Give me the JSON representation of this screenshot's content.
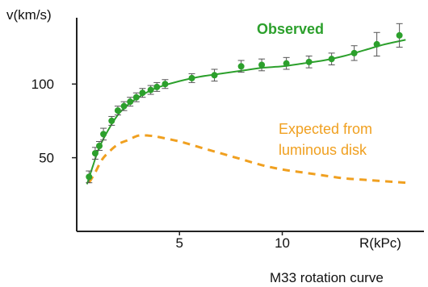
{
  "chart_data": {
    "type": "scatter",
    "title": "",
    "caption": "M33 rotation curve",
    "ylabel": "v(km/s)",
    "xlabel": "R(kPc)",
    "xlim": [
      0,
      16.5
    ],
    "ylim": [
      0,
      145
    ],
    "x_ticks": [
      {
        "value": 5,
        "label": "5"
      },
      {
        "value": 10,
        "label": "10"
      }
    ],
    "y_ticks": [
      {
        "value": 50,
        "label": "50"
      },
      {
        "value": 100,
        "label": "100"
      }
    ],
    "grid": false,
    "colors": {
      "observed": "#2ca02c",
      "expected": "#f0a020",
      "axis": "#222222"
    },
    "series": [
      {
        "name": "Observed",
        "type": "scatter-with-errorbars-and-fit",
        "points": [
          {
            "x": 0.6,
            "y": 37,
            "err": 4
          },
          {
            "x": 0.9,
            "y": 53,
            "err": 4
          },
          {
            "x": 1.1,
            "y": 58,
            "err": 3
          },
          {
            "x": 1.3,
            "y": 66,
            "err": 4
          },
          {
            "x": 1.7,
            "y": 75,
            "err": 3
          },
          {
            "x": 2.0,
            "y": 82,
            "err": 3
          },
          {
            "x": 2.3,
            "y": 85,
            "err": 3
          },
          {
            "x": 2.6,
            "y": 88,
            "err": 3
          },
          {
            "x": 2.9,
            "y": 91,
            "err": 3
          },
          {
            "x": 3.2,
            "y": 94,
            "err": 3
          },
          {
            "x": 3.6,
            "y": 96,
            "err": 3
          },
          {
            "x": 3.9,
            "y": 98,
            "err": 3
          },
          {
            "x": 4.3,
            "y": 100,
            "err": 3
          },
          {
            "x": 5.6,
            "y": 104,
            "err": 3
          },
          {
            "x": 6.7,
            "y": 106,
            "err": 4
          },
          {
            "x": 8.0,
            "y": 112,
            "err": 4
          },
          {
            "x": 9.0,
            "y": 113,
            "err": 4
          },
          {
            "x": 10.2,
            "y": 114,
            "err": 4
          },
          {
            "x": 11.3,
            "y": 115,
            "err": 4
          },
          {
            "x": 12.4,
            "y": 117,
            "err": 4
          },
          {
            "x": 13.5,
            "y": 121,
            "err": 5
          },
          {
            "x": 14.6,
            "y": 127,
            "err": 8
          },
          {
            "x": 15.7,
            "y": 133,
            "err": 8
          }
        ],
        "fit": [
          [
            0.5,
            32
          ],
          [
            0.8,
            45
          ],
          [
            1.1,
            57
          ],
          [
            1.5,
            68
          ],
          [
            2.0,
            79
          ],
          [
            2.5,
            86
          ],
          [
            3.0,
            91
          ],
          [
            3.5,
            95
          ],
          [
            4.0,
            98
          ],
          [
            5.0,
            102
          ],
          [
            6.0,
            105
          ],
          [
            7.0,
            107
          ],
          [
            8.0,
            109
          ],
          [
            9.0,
            111
          ],
          [
            10.0,
            112
          ],
          [
            11.0,
            114
          ],
          [
            12.0,
            116
          ],
          [
            13.0,
            119
          ],
          [
            14.0,
            123
          ],
          [
            15.0,
            127
          ],
          [
            16.0,
            130
          ]
        ]
      },
      {
        "name": "Expected from luminous disk",
        "label_lines": [
          "Expected from",
          "luminous disk"
        ],
        "type": "dashed-line",
        "points": [
          [
            0.6,
            33
          ],
          [
            0.9,
            40
          ],
          [
            1.2,
            48
          ],
          [
            1.5,
            53
          ],
          [
            2.0,
            59
          ],
          [
            2.5,
            62
          ],
          [
            3.0,
            65
          ],
          [
            3.5,
            65
          ],
          [
            4.0,
            64
          ],
          [
            5.0,
            61
          ],
          [
            6.0,
            57
          ],
          [
            7.0,
            53
          ],
          [
            8.0,
            49
          ],
          [
            9.0,
            45
          ],
          [
            10.0,
            42
          ],
          [
            11.0,
            40
          ],
          [
            12.0,
            38
          ],
          [
            13.0,
            36
          ],
          [
            14.0,
            35
          ],
          [
            15.0,
            34
          ],
          [
            16.0,
            33
          ]
        ]
      }
    ]
  }
}
